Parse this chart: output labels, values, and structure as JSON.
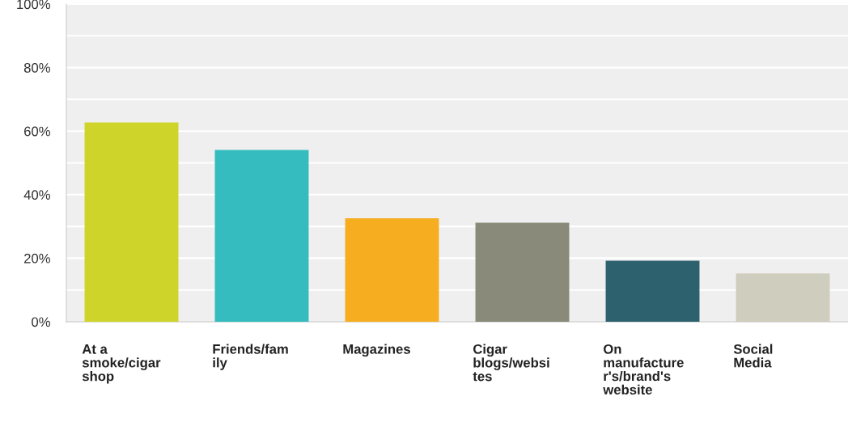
{
  "chart_data": {
    "type": "bar",
    "categories": [
      "At a\nsmoke/cigar\nshop",
      "Friends/fam\nily",
      "Magazines",
      "Cigar\nblogs/websi\ntes",
      "On\nmanufacture\nr's/brand's\nwebsite",
      "Social\nMedia"
    ],
    "values": [
      62.7,
      54.1,
      32.6,
      31.2,
      19.2,
      15.2
    ],
    "colors": [
      "#cfd42a",
      "#34bcbf",
      "#f6ae20",
      "#898a79",
      "#2e616e",
      "#cfcdbe"
    ],
    "ylim": [
      0,
      100
    ],
    "yticks": [
      {
        "value": 0,
        "label": "0%"
      },
      {
        "value": 10,
        "label": null
      },
      {
        "value": 20,
        "label": "20%"
      },
      {
        "value": 30,
        "label": null
      },
      {
        "value": 40,
        "label": "40%"
      },
      {
        "value": 50,
        "label": null
      },
      {
        "value": 60,
        "label": "60%"
      },
      {
        "value": 70,
        "label": null
      },
      {
        "value": 80,
        "label": "80%"
      },
      {
        "value": 90,
        "label": null
      },
      {
        "value": 100,
        "label": "100%"
      }
    ],
    "grid": "y"
  }
}
